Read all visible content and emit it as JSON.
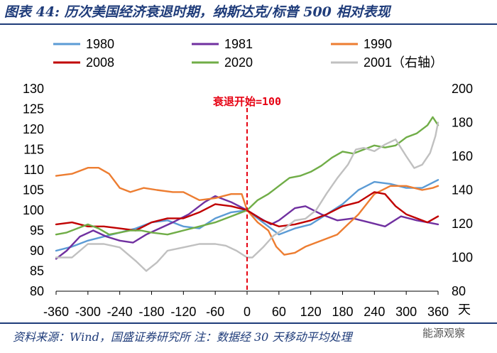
{
  "header": {
    "title": "图表 44: 历次美国经济衰退时期，纳斯达克/标普 500 相对表现"
  },
  "footer": {
    "source": "资料来源：Wind，国盛证券研究所   注：数据经 30 天移动平均处理"
  },
  "watermark": {
    "text": "能源观察"
  },
  "chart_data": {
    "type": "line",
    "title": "历次美国经济衰退时期，纳斯达克/标普 500 相对表现",
    "xlabel": "天",
    "x_ticks": [
      -360,
      -300,
      -240,
      -180,
      -120,
      -60,
      0,
      60,
      120,
      180,
      240,
      300,
      360
    ],
    "y_left_ticks": [
      80,
      85,
      90,
      95,
      100,
      105,
      110,
      115,
      120,
      125,
      130
    ],
    "y_right_ticks": [
      80,
      100,
      120,
      140,
      160,
      180,
      200
    ],
    "xlim": [
      -360,
      360
    ],
    "ylim_left": [
      80,
      130
    ],
    "ylim_right": [
      80,
      200
    ],
    "annotation": "衰退开始=100",
    "annotation_x": 0,
    "series": [
      {
        "name": "1980",
        "color": "#5b9bd5",
        "axis": "left",
        "points": [
          [
            -360,
            90
          ],
          [
            -330,
            91
          ],
          [
            -300,
            92.5
          ],
          [
            -270,
            93.5
          ],
          [
            -240,
            94.5
          ],
          [
            -210,
            95.5
          ],
          [
            -180,
            97
          ],
          [
            -150,
            97.5
          ],
          [
            -120,
            96
          ],
          [
            -90,
            95.5
          ],
          [
            -60,
            98
          ],
          [
            -30,
            99.5
          ],
          [
            0,
            100
          ],
          [
            20,
            98
          ],
          [
            40,
            96
          ],
          [
            60,
            94
          ],
          [
            90,
            95.5
          ],
          [
            120,
            96.5
          ],
          [
            150,
            99
          ],
          [
            180,
            101.5
          ],
          [
            210,
            105
          ],
          [
            240,
            107
          ],
          [
            270,
            106.5
          ],
          [
            300,
            105.5
          ],
          [
            330,
            105.5
          ],
          [
            360,
            107.5
          ]
        ]
      },
      {
        "name": "1981",
        "color": "#7030a0",
        "axis": "left",
        "points": [
          [
            -360,
            88
          ],
          [
            -340,
            90
          ],
          [
            -315,
            93.5
          ],
          [
            -290,
            95
          ],
          [
            -265,
            93.5
          ],
          [
            -240,
            92.5
          ],
          [
            -215,
            92
          ],
          [
            -190,
            94
          ],
          [
            -165,
            95.5
          ],
          [
            -140,
            97
          ],
          [
            -110,
            99
          ],
          [
            -80,
            102
          ],
          [
            -60,
            103.5
          ],
          [
            -30,
            102
          ],
          [
            0,
            100
          ],
          [
            25,
            98
          ],
          [
            45,
            96.5
          ],
          [
            60,
            97.5
          ],
          [
            90,
            100.5
          ],
          [
            110,
            101
          ],
          [
            140,
            99
          ],
          [
            170,
            97.5
          ],
          [
            200,
            98
          ],
          [
            230,
            97
          ],
          [
            260,
            96
          ],
          [
            290,
            98.5
          ],
          [
            320,
            97.5
          ],
          [
            340,
            97
          ],
          [
            360,
            96.5
          ]
        ]
      },
      {
        "name": "1990",
        "color": "#ed7d31",
        "axis": "left",
        "points": [
          [
            -360,
            108.5
          ],
          [
            -330,
            109
          ],
          [
            -300,
            110.5
          ],
          [
            -280,
            110.5
          ],
          [
            -260,
            109
          ],
          [
            -240,
            105.5
          ],
          [
            -220,
            104.5
          ],
          [
            -195,
            105.5
          ],
          [
            -170,
            105
          ],
          [
            -140,
            104.5
          ],
          [
            -120,
            104.5
          ],
          [
            -90,
            102.5
          ],
          [
            -60,
            103
          ],
          [
            -30,
            104
          ],
          [
            -10,
            104
          ],
          [
            0,
            100
          ],
          [
            20,
            97
          ],
          [
            40,
            95
          ],
          [
            55,
            91
          ],
          [
            70,
            89
          ],
          [
            90,
            89.5
          ],
          [
            110,
            91
          ],
          [
            140,
            92.5
          ],
          [
            170,
            94
          ],
          [
            190,
            96.5
          ],
          [
            210,
            99
          ],
          [
            240,
            104
          ],
          [
            270,
            106
          ],
          [
            300,
            106
          ],
          [
            330,
            105
          ],
          [
            350,
            105.5
          ],
          [
            360,
            106
          ]
        ]
      },
      {
        "name": "2008",
        "color": "#c00000",
        "axis": "left",
        "points": [
          [
            -360,
            96.5
          ],
          [
            -330,
            97
          ],
          [
            -300,
            96
          ],
          [
            -270,
            96
          ],
          [
            -240,
            95.5
          ],
          [
            -210,
            95
          ],
          [
            -180,
            97
          ],
          [
            -150,
            98
          ],
          [
            -120,
            98
          ],
          [
            -90,
            99.5
          ],
          [
            -60,
            101.5
          ],
          [
            -30,
            101
          ],
          [
            0,
            100
          ],
          [
            30,
            97.5
          ],
          [
            60,
            96
          ],
          [
            90,
            96.5
          ],
          [
            120,
            97.5
          ],
          [
            150,
            99
          ],
          [
            180,
            101
          ],
          [
            210,
            102
          ],
          [
            240,
            104.5
          ],
          [
            260,
            104
          ],
          [
            280,
            101
          ],
          [
            300,
            99
          ],
          [
            320,
            98
          ],
          [
            340,
            97
          ],
          [
            360,
            98.5
          ]
        ]
      },
      {
        "name": "2020",
        "color": "#70ad47",
        "axis": "left",
        "points": [
          [
            -360,
            94
          ],
          [
            -340,
            94.5
          ],
          [
            -320,
            95.5
          ],
          [
            -300,
            96.5
          ],
          [
            -280,
            95.5
          ],
          [
            -260,
            94
          ],
          [
            -240,
            94.5
          ],
          [
            -220,
            95
          ],
          [
            -200,
            95
          ],
          [
            -180,
            94.5
          ],
          [
            -150,
            94
          ],
          [
            -120,
            95
          ],
          [
            -90,
            96
          ],
          [
            -60,
            97
          ],
          [
            -30,
            98.5
          ],
          [
            0,
            100
          ],
          [
            20,
            102.5
          ],
          [
            40,
            104
          ],
          [
            60,
            106
          ],
          [
            80,
            108
          ],
          [
            100,
            108.5
          ],
          [
            120,
            109.5
          ],
          [
            140,
            111
          ],
          [
            160,
            113
          ],
          [
            180,
            114.5
          ],
          [
            200,
            114
          ],
          [
            220,
            115
          ],
          [
            240,
            116
          ],
          [
            260,
            115.5
          ],
          [
            280,
            116
          ],
          [
            300,
            118
          ],
          [
            320,
            119
          ],
          [
            340,
            121
          ],
          [
            350,
            123
          ],
          [
            360,
            121
          ]
        ]
      },
      {
        "name": "2001（右轴）",
        "color": "#c0c0c0",
        "axis": "right",
        "points": [
          [
            -360,
            100
          ],
          [
            -330,
            100
          ],
          [
            -300,
            108
          ],
          [
            -270,
            108
          ],
          [
            -240,
            106
          ],
          [
            -210,
            98
          ],
          [
            -190,
            92
          ],
          [
            -170,
            97
          ],
          [
            -150,
            104
          ],
          [
            -120,
            106
          ],
          [
            -90,
            108
          ],
          [
            -60,
            108
          ],
          [
            -40,
            107
          ],
          [
            -20,
            104
          ],
          [
            0,
            100
          ],
          [
            10,
            100
          ],
          [
            30,
            106
          ],
          [
            50,
            113
          ],
          [
            70,
            117
          ],
          [
            90,
            122
          ],
          [
            110,
            123
          ],
          [
            130,
            128
          ],
          [
            150,
            138
          ],
          [
            170,
            147
          ],
          [
            190,
            155
          ],
          [
            205,
            164
          ],
          [
            220,
            165
          ],
          [
            240,
            163
          ],
          [
            260,
            167
          ],
          [
            280,
            170
          ],
          [
            300,
            160
          ],
          [
            315,
            153
          ],
          [
            330,
            155
          ],
          [
            345,
            162
          ],
          [
            355,
            172
          ],
          [
            360,
            180
          ]
        ]
      }
    ]
  }
}
